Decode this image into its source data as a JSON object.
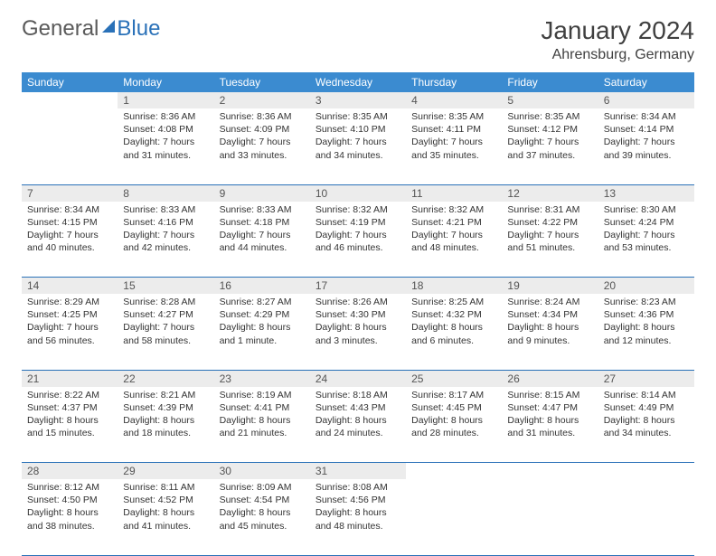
{
  "logo": {
    "text1": "General",
    "text2": "Blue"
  },
  "title": "January 2024",
  "location": "Ahrensburg, Germany",
  "columns": [
    "Sunday",
    "Monday",
    "Tuesday",
    "Wednesday",
    "Thursday",
    "Friday",
    "Saturday"
  ],
  "header_bg": "#3b8bd0",
  "header_fg": "#ffffff",
  "daynum_bg": "#ececec",
  "rule_color": "#2a71b8",
  "weeks": [
    [
      {
        "n": "",
        "lines": []
      },
      {
        "n": "1",
        "lines": [
          "Sunrise: 8:36 AM",
          "Sunset: 4:08 PM",
          "Daylight: 7 hours",
          "and 31 minutes."
        ]
      },
      {
        "n": "2",
        "lines": [
          "Sunrise: 8:36 AM",
          "Sunset: 4:09 PM",
          "Daylight: 7 hours",
          "and 33 minutes."
        ]
      },
      {
        "n": "3",
        "lines": [
          "Sunrise: 8:35 AM",
          "Sunset: 4:10 PM",
          "Daylight: 7 hours",
          "and 34 minutes."
        ]
      },
      {
        "n": "4",
        "lines": [
          "Sunrise: 8:35 AM",
          "Sunset: 4:11 PM",
          "Daylight: 7 hours",
          "and 35 minutes."
        ]
      },
      {
        "n": "5",
        "lines": [
          "Sunrise: 8:35 AM",
          "Sunset: 4:12 PM",
          "Daylight: 7 hours",
          "and 37 minutes."
        ]
      },
      {
        "n": "6",
        "lines": [
          "Sunrise: 8:34 AM",
          "Sunset: 4:14 PM",
          "Daylight: 7 hours",
          "and 39 minutes."
        ]
      }
    ],
    [
      {
        "n": "7",
        "lines": [
          "Sunrise: 8:34 AM",
          "Sunset: 4:15 PM",
          "Daylight: 7 hours",
          "and 40 minutes."
        ]
      },
      {
        "n": "8",
        "lines": [
          "Sunrise: 8:33 AM",
          "Sunset: 4:16 PM",
          "Daylight: 7 hours",
          "and 42 minutes."
        ]
      },
      {
        "n": "9",
        "lines": [
          "Sunrise: 8:33 AM",
          "Sunset: 4:18 PM",
          "Daylight: 7 hours",
          "and 44 minutes."
        ]
      },
      {
        "n": "10",
        "lines": [
          "Sunrise: 8:32 AM",
          "Sunset: 4:19 PM",
          "Daylight: 7 hours",
          "and 46 minutes."
        ]
      },
      {
        "n": "11",
        "lines": [
          "Sunrise: 8:32 AM",
          "Sunset: 4:21 PM",
          "Daylight: 7 hours",
          "and 48 minutes."
        ]
      },
      {
        "n": "12",
        "lines": [
          "Sunrise: 8:31 AM",
          "Sunset: 4:22 PM",
          "Daylight: 7 hours",
          "and 51 minutes."
        ]
      },
      {
        "n": "13",
        "lines": [
          "Sunrise: 8:30 AM",
          "Sunset: 4:24 PM",
          "Daylight: 7 hours",
          "and 53 minutes."
        ]
      }
    ],
    [
      {
        "n": "14",
        "lines": [
          "Sunrise: 8:29 AM",
          "Sunset: 4:25 PM",
          "Daylight: 7 hours",
          "and 56 minutes."
        ]
      },
      {
        "n": "15",
        "lines": [
          "Sunrise: 8:28 AM",
          "Sunset: 4:27 PM",
          "Daylight: 7 hours",
          "and 58 minutes."
        ]
      },
      {
        "n": "16",
        "lines": [
          "Sunrise: 8:27 AM",
          "Sunset: 4:29 PM",
          "Daylight: 8 hours",
          "and 1 minute."
        ]
      },
      {
        "n": "17",
        "lines": [
          "Sunrise: 8:26 AM",
          "Sunset: 4:30 PM",
          "Daylight: 8 hours",
          "and 3 minutes."
        ]
      },
      {
        "n": "18",
        "lines": [
          "Sunrise: 8:25 AM",
          "Sunset: 4:32 PM",
          "Daylight: 8 hours",
          "and 6 minutes."
        ]
      },
      {
        "n": "19",
        "lines": [
          "Sunrise: 8:24 AM",
          "Sunset: 4:34 PM",
          "Daylight: 8 hours",
          "and 9 minutes."
        ]
      },
      {
        "n": "20",
        "lines": [
          "Sunrise: 8:23 AM",
          "Sunset: 4:36 PM",
          "Daylight: 8 hours",
          "and 12 minutes."
        ]
      }
    ],
    [
      {
        "n": "21",
        "lines": [
          "Sunrise: 8:22 AM",
          "Sunset: 4:37 PM",
          "Daylight: 8 hours",
          "and 15 minutes."
        ]
      },
      {
        "n": "22",
        "lines": [
          "Sunrise: 8:21 AM",
          "Sunset: 4:39 PM",
          "Daylight: 8 hours",
          "and 18 minutes."
        ]
      },
      {
        "n": "23",
        "lines": [
          "Sunrise: 8:19 AM",
          "Sunset: 4:41 PM",
          "Daylight: 8 hours",
          "and 21 minutes."
        ]
      },
      {
        "n": "24",
        "lines": [
          "Sunrise: 8:18 AM",
          "Sunset: 4:43 PM",
          "Daylight: 8 hours",
          "and 24 minutes."
        ]
      },
      {
        "n": "25",
        "lines": [
          "Sunrise: 8:17 AM",
          "Sunset: 4:45 PM",
          "Daylight: 8 hours",
          "and 28 minutes."
        ]
      },
      {
        "n": "26",
        "lines": [
          "Sunrise: 8:15 AM",
          "Sunset: 4:47 PM",
          "Daylight: 8 hours",
          "and 31 minutes."
        ]
      },
      {
        "n": "27",
        "lines": [
          "Sunrise: 8:14 AM",
          "Sunset: 4:49 PM",
          "Daylight: 8 hours",
          "and 34 minutes."
        ]
      }
    ],
    [
      {
        "n": "28",
        "lines": [
          "Sunrise: 8:12 AM",
          "Sunset: 4:50 PM",
          "Daylight: 8 hours",
          "and 38 minutes."
        ]
      },
      {
        "n": "29",
        "lines": [
          "Sunrise: 8:11 AM",
          "Sunset: 4:52 PM",
          "Daylight: 8 hours",
          "and 41 minutes."
        ]
      },
      {
        "n": "30",
        "lines": [
          "Sunrise: 8:09 AM",
          "Sunset: 4:54 PM",
          "Daylight: 8 hours",
          "and 45 minutes."
        ]
      },
      {
        "n": "31",
        "lines": [
          "Sunrise: 8:08 AM",
          "Sunset: 4:56 PM",
          "Daylight: 8 hours",
          "and 48 minutes."
        ]
      },
      {
        "n": "",
        "lines": []
      },
      {
        "n": "",
        "lines": []
      },
      {
        "n": "",
        "lines": []
      }
    ]
  ]
}
